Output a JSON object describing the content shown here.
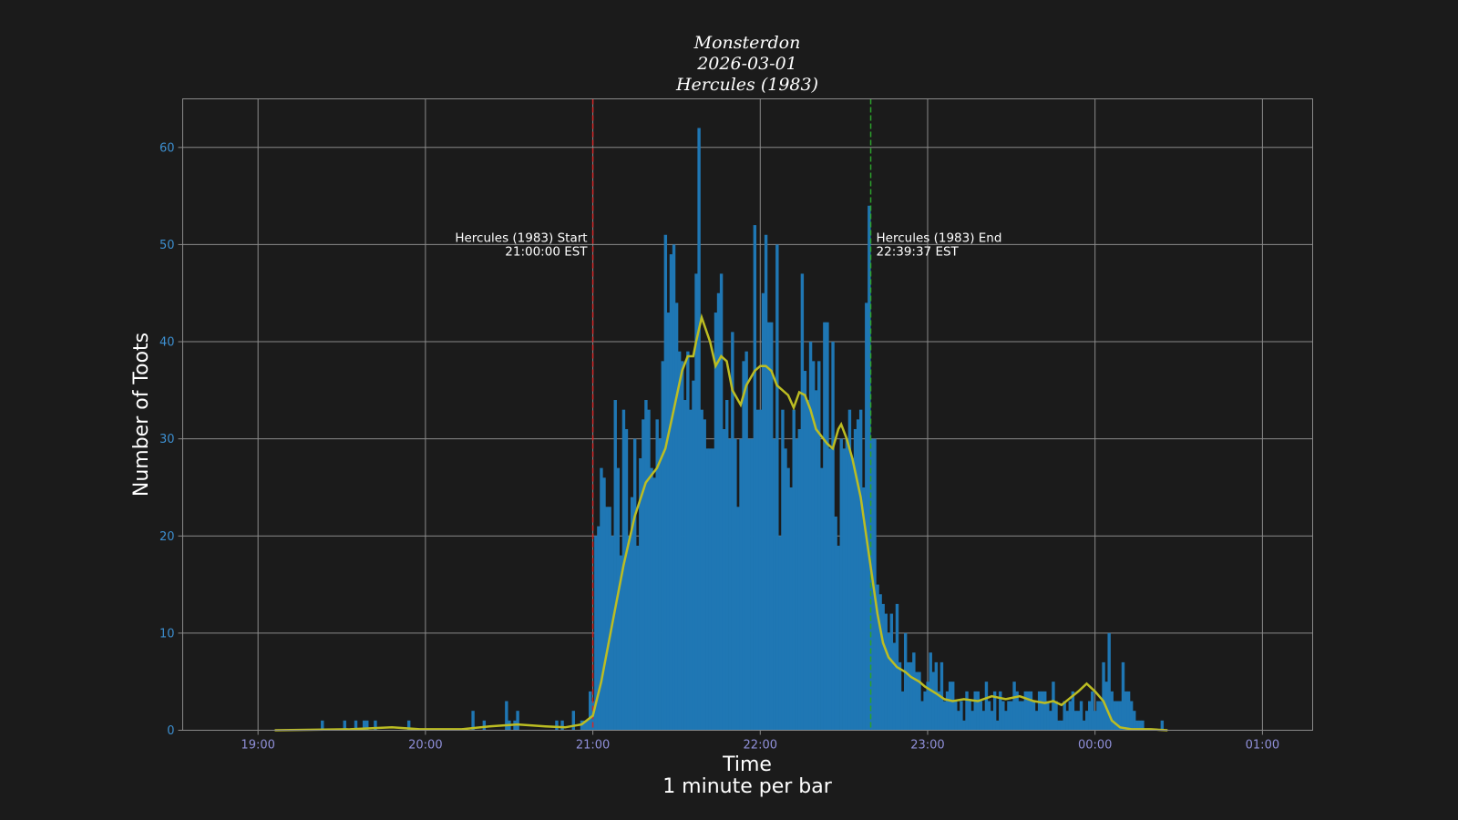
{
  "chart_data": {
    "type": "bar",
    "title_lines": [
      "Monsterdon",
      "2026-03-01",
      "Hercules (1983)"
    ],
    "xlabel": "Time",
    "xlabel_sub": "1 minute per bar",
    "ylabel": "Number of Toots",
    "x_start": "18:33",
    "x_ticks": [
      "19:00",
      "20:00",
      "21:00",
      "22:00",
      "23:00",
      "00:00",
      "01:00"
    ],
    "x_tick_minutes": [
      27,
      87,
      147,
      207,
      267,
      327,
      387
    ],
    "xlim_minutes": [
      0,
      405
    ],
    "y_ticks": [
      0,
      10,
      20,
      30,
      40,
      50,
      60
    ],
    "ylim": [
      0,
      65
    ],
    "grid": true,
    "bar_width_minutes": 1,
    "bar_color": "#1f77b4",
    "smooth_color": "#bcbd22",
    "bars": [
      [
        34,
        0
      ],
      [
        35,
        0
      ],
      [
        36,
        0
      ],
      [
        37,
        0
      ],
      [
        38,
        0
      ],
      [
        39,
        0
      ],
      [
        40,
        0
      ],
      [
        41,
        0
      ],
      [
        42,
        0
      ],
      [
        43,
        0
      ],
      [
        44,
        0
      ],
      [
        45,
        0
      ],
      [
        46,
        0
      ],
      [
        47,
        0
      ],
      [
        48,
        0
      ],
      [
        49,
        0
      ],
      [
        50,
        1
      ],
      [
        51,
        0
      ],
      [
        52,
        0
      ],
      [
        53,
        0
      ],
      [
        54,
        0
      ],
      [
        55,
        0
      ],
      [
        56,
        0
      ],
      [
        57,
        0
      ],
      [
        58,
        1
      ],
      [
        59,
        0
      ],
      [
        60,
        0
      ],
      [
        61,
        0
      ],
      [
        62,
        1
      ],
      [
        63,
        0
      ],
      [
        64,
        0
      ],
      [
        65,
        1
      ],
      [
        66,
        1
      ],
      [
        67,
        0
      ],
      [
        68,
        0
      ],
      [
        69,
        1
      ],
      [
        70,
        0
      ],
      [
        71,
        0
      ],
      [
        72,
        0
      ],
      [
        73,
        0
      ],
      [
        74,
        0
      ],
      [
        75,
        0
      ],
      [
        76,
        0
      ],
      [
        77,
        0
      ],
      [
        78,
        0
      ],
      [
        79,
        0
      ],
      [
        80,
        0
      ],
      [
        81,
        1
      ],
      [
        82,
        0
      ],
      [
        83,
        0
      ],
      [
        84,
        0
      ],
      [
        85,
        0
      ],
      [
        86,
        0
      ],
      [
        87,
        0
      ],
      [
        88,
        0
      ],
      [
        89,
        0
      ],
      [
        90,
        0
      ],
      [
        91,
        0
      ],
      [
        92,
        0
      ],
      [
        93,
        0
      ],
      [
        94,
        0
      ],
      [
        95,
        0
      ],
      [
        96,
        0
      ],
      [
        97,
        0
      ],
      [
        98,
        0
      ],
      [
        99,
        0
      ],
      [
        100,
        0
      ],
      [
        101,
        0
      ],
      [
        102,
        0
      ],
      [
        103,
        0
      ],
      [
        104,
        2
      ],
      [
        105,
        0
      ],
      [
        106,
        0
      ],
      [
        107,
        0
      ],
      [
        108,
        1
      ],
      [
        109,
        0
      ],
      [
        110,
        0
      ],
      [
        111,
        0
      ],
      [
        112,
        0
      ],
      [
        113,
        0
      ],
      [
        114,
        0
      ],
      [
        115,
        0
      ],
      [
        116,
        3
      ],
      [
        117,
        1
      ],
      [
        118,
        0
      ],
      [
        119,
        1
      ],
      [
        120,
        2
      ],
      [
        121,
        0
      ],
      [
        122,
        0
      ],
      [
        123,
        0
      ],
      [
        124,
        0
      ],
      [
        125,
        0
      ],
      [
        126,
        0
      ],
      [
        127,
        0
      ],
      [
        128,
        0
      ],
      [
        129,
        0
      ],
      [
        130,
        0
      ],
      [
        131,
        0
      ],
      [
        132,
        0
      ],
      [
        133,
        0
      ],
      [
        134,
        1
      ],
      [
        135,
        0
      ],
      [
        136,
        1
      ],
      [
        137,
        0
      ],
      [
        138,
        0
      ],
      [
        139,
        0
      ],
      [
        140,
        2
      ],
      [
        141,
        0
      ],
      [
        142,
        0
      ],
      [
        143,
        1
      ],
      [
        144,
        1
      ],
      [
        145,
        1
      ],
      [
        146,
        4
      ],
      [
        147,
        3
      ],
      [
        148,
        20
      ],
      [
        149,
        21
      ],
      [
        150,
        27
      ],
      [
        151,
        26
      ],
      [
        152,
        23
      ],
      [
        153,
        23
      ],
      [
        154,
        20
      ],
      [
        155,
        34
      ],
      [
        156,
        27
      ],
      [
        157,
        18
      ],
      [
        158,
        33
      ],
      [
        159,
        31
      ],
      [
        160,
        20
      ],
      [
        161,
        24
      ],
      [
        162,
        30
      ],
      [
        163,
        19
      ],
      [
        164,
        28
      ],
      [
        165,
        32
      ],
      [
        166,
        34
      ],
      [
        167,
        33
      ],
      [
        168,
        27
      ],
      [
        169,
        26
      ],
      [
        170,
        32
      ],
      [
        171,
        30
      ],
      [
        172,
        38
      ],
      [
        173,
        51
      ],
      [
        174,
        43
      ],
      [
        175,
        49
      ],
      [
        176,
        50
      ],
      [
        177,
        44
      ],
      [
        178,
        39
      ],
      [
        179,
        38
      ],
      [
        180,
        34
      ],
      [
        181,
        39
      ],
      [
        182,
        33
      ],
      [
        183,
        36
      ],
      [
        184,
        47
      ],
      [
        185,
        62
      ],
      [
        186,
        33
      ],
      [
        187,
        32
      ],
      [
        188,
        29
      ],
      [
        189,
        29
      ],
      [
        190,
        29
      ],
      [
        191,
        43
      ],
      [
        192,
        45
      ],
      [
        193,
        47
      ],
      [
        194,
        31
      ],
      [
        195,
        34
      ],
      [
        196,
        30
      ],
      [
        197,
        41
      ],
      [
        198,
        30
      ],
      [
        199,
        23
      ],
      [
        200,
        30
      ],
      [
        201,
        38
      ],
      [
        202,
        39
      ],
      [
        203,
        30
      ],
      [
        204,
        30
      ],
      [
        205,
        52
      ],
      [
        206,
        33
      ],
      [
        207,
        33
      ],
      [
        208,
        45
      ],
      [
        209,
        51
      ],
      [
        210,
        42
      ],
      [
        211,
        42
      ],
      [
        212,
        30
      ],
      [
        213,
        50
      ],
      [
        214,
        20
      ],
      [
        215,
        33
      ],
      [
        216,
        29
      ],
      [
        217,
        27
      ],
      [
        218,
        25
      ],
      [
        219,
        33
      ],
      [
        220,
        30
      ],
      [
        221,
        31
      ],
      [
        222,
        47
      ],
      [
        223,
        37
      ],
      [
        224,
        34
      ],
      [
        225,
        40
      ],
      [
        226,
        38
      ],
      [
        227,
        35
      ],
      [
        228,
        38
      ],
      [
        229,
        27
      ],
      [
        230,
        42
      ],
      [
        231,
        42
      ],
      [
        232,
        29
      ],
      [
        233,
        40
      ],
      [
        234,
        22
      ],
      [
        235,
        19
      ],
      [
        236,
        30
      ],
      [
        237,
        29
      ],
      [
        238,
        30
      ],
      [
        239,
        33
      ],
      [
        240,
        28
      ],
      [
        241,
        31
      ],
      [
        242,
        32
      ],
      [
        243,
        33
      ],
      [
        244,
        25
      ],
      [
        245,
        44
      ],
      [
        246,
        54
      ],
      [
        247,
        30
      ],
      [
        248,
        30
      ],
      [
        249,
        15
      ],
      [
        250,
        14
      ],
      [
        251,
        13
      ],
      [
        252,
        12
      ],
      [
        253,
        10
      ],
      [
        254,
        12
      ],
      [
        255,
        9
      ],
      [
        256,
        13
      ],
      [
        257,
        7
      ],
      [
        258,
        4
      ],
      [
        259,
        10
      ],
      [
        260,
        7
      ],
      [
        261,
        7
      ],
      [
        262,
        8
      ],
      [
        263,
        6
      ],
      [
        264,
        6
      ],
      [
        265,
        3
      ],
      [
        266,
        4
      ],
      [
        267,
        5
      ],
      [
        268,
        8
      ],
      [
        269,
        6
      ],
      [
        270,
        7
      ],
      [
        271,
        4
      ],
      [
        272,
        7
      ],
      [
        273,
        3
      ],
      [
        274,
        4
      ],
      [
        275,
        5
      ],
      [
        276,
        5
      ],
      [
        277,
        3
      ],
      [
        278,
        2
      ],
      [
        279,
        3
      ],
      [
        280,
        1
      ],
      [
        281,
        4
      ],
      [
        282,
        3
      ],
      [
        283,
        2
      ],
      [
        284,
        4
      ],
      [
        285,
        4
      ],
      [
        286,
        3
      ],
      [
        287,
        2
      ],
      [
        288,
        5
      ],
      [
        289,
        3
      ],
      [
        290,
        2
      ],
      [
        291,
        4
      ],
      [
        292,
        1
      ],
      [
        293,
        4
      ],
      [
        294,
        3
      ],
      [
        295,
        2
      ],
      [
        296,
        3
      ],
      [
        297,
        3
      ],
      [
        298,
        5
      ],
      [
        299,
        4
      ],
      [
        300,
        3
      ],
      [
        301,
        3
      ],
      [
        302,
        4
      ],
      [
        303,
        4
      ],
      [
        304,
        4
      ],
      [
        305,
        3
      ],
      [
        306,
        2
      ],
      [
        307,
        4
      ],
      [
        308,
        4
      ],
      [
        309,
        4
      ],
      [
        310,
        3
      ],
      [
        311,
        2
      ],
      [
        312,
        5
      ],
      [
        313,
        3
      ],
      [
        314,
        1
      ],
      [
        315,
        1
      ],
      [
        316,
        3
      ],
      [
        317,
        2
      ],
      [
        318,
        3
      ],
      [
        319,
        4
      ],
      [
        320,
        2
      ],
      [
        321,
        2
      ],
      [
        322,
        3
      ],
      [
        323,
        1
      ],
      [
        324,
        2
      ],
      [
        325,
        3
      ],
      [
        326,
        4
      ],
      [
        327,
        2
      ],
      [
        328,
        3
      ],
      [
        329,
        3
      ],
      [
        330,
        7
      ],
      [
        331,
        5
      ],
      [
        332,
        10
      ],
      [
        333,
        4
      ],
      [
        334,
        3
      ],
      [
        335,
        3
      ],
      [
        336,
        3
      ],
      [
        337,
        7
      ],
      [
        338,
        4
      ],
      [
        339,
        4
      ],
      [
        340,
        3
      ],
      [
        341,
        2
      ],
      [
        342,
        1
      ],
      [
        343,
        1
      ],
      [
        344,
        1
      ],
      [
        345,
        0
      ],
      [
        346,
        0
      ],
      [
        347,
        0
      ],
      [
        348,
        0
      ],
      [
        349,
        0
      ],
      [
        350,
        0
      ],
      [
        351,
        1
      ],
      [
        352,
        0
      ],
      [
        353,
        0
      ],
      [
        354,
        0
      ],
      [
        355,
        0
      ],
      [
        356,
        0
      ],
      [
        357,
        0
      ],
      [
        358,
        0
      ],
      [
        359,
        0
      ],
      [
        360,
        0
      ],
      [
        361,
        0
      ],
      [
        362,
        0
      ],
      [
        363,
        0
      ],
      [
        364,
        0
      ],
      [
        365,
        0
      ],
      [
        366,
        0
      ],
      [
        367,
        0
      ],
      [
        368,
        0
      ],
      [
        369,
        0
      ],
      [
        370,
        0
      ],
      [
        371,
        0
      ],
      [
        372,
        0
      ],
      [
        373,
        0
      ],
      [
        374,
        0
      ],
      [
        375,
        0
      ],
      [
        376,
        0
      ],
      [
        377,
        0
      ],
      [
        378,
        0
      ],
      [
        379,
        0
      ],
      [
        380,
        0
      ],
      [
        381,
        0
      ],
      [
        382,
        0
      ],
      [
        383,
        0
      ],
      [
        384,
        0
      ],
      [
        385,
        0
      ],
      [
        386,
        0
      ]
    ],
    "smooth_line": [
      [
        33,
        0
      ],
      [
        60,
        0.1
      ],
      [
        75,
        0.3
      ],
      [
        85,
        0.1
      ],
      [
        100,
        0.1
      ],
      [
        110,
        0.4
      ],
      [
        120,
        0.6
      ],
      [
        130,
        0.4
      ],
      [
        137,
        0.3
      ],
      [
        143,
        0.6
      ],
      [
        147,
        1.5
      ],
      [
        150,
        5
      ],
      [
        154,
        11
      ],
      [
        158,
        17
      ],
      [
        162,
        22
      ],
      [
        166,
        25.5
      ],
      [
        170,
        27
      ],
      [
        173,
        29
      ],
      [
        176,
        33
      ],
      [
        179,
        37
      ],
      [
        181,
        38.5
      ],
      [
        183,
        38.5
      ],
      [
        184,
        40
      ],
      [
        186,
        42.5
      ],
      [
        189,
        40
      ],
      [
        191,
        37.5
      ],
      [
        193,
        38.5
      ],
      [
        195,
        38
      ],
      [
        197,
        35
      ],
      [
        199,
        34
      ],
      [
        200,
        33.5
      ],
      [
        202,
        35.5
      ],
      [
        205,
        37
      ],
      [
        207,
        37.5
      ],
      [
        209,
        37.5
      ],
      [
        211,
        37
      ],
      [
        213,
        35.5
      ],
      [
        217,
        34.5
      ],
      [
        219,
        33.2
      ],
      [
        221,
        34.8
      ],
      [
        223,
        34.5
      ],
      [
        225,
        33
      ],
      [
        227,
        31
      ],
      [
        231,
        29.5
      ],
      [
        233,
        29
      ],
      [
        235,
        31
      ],
      [
        236,
        31.5
      ],
      [
        238,
        30
      ],
      [
        240,
        28
      ],
      [
        243,
        24
      ],
      [
        246,
        18
      ],
      [
        249,
        12
      ],
      [
        251,
        9
      ],
      [
        253,
        7.5
      ],
      [
        256,
        6.5
      ],
      [
        259,
        6
      ],
      [
        261,
        5.5
      ],
      [
        264,
        5
      ],
      [
        266,
        4.5
      ],
      [
        270,
        3.8
      ],
      [
        273,
        3.2
      ],
      [
        276,
        3
      ],
      [
        280,
        3.2
      ],
      [
        285,
        3
      ],
      [
        290,
        3.5
      ],
      [
        295,
        3.2
      ],
      [
        300,
        3.5
      ],
      [
        305,
        3
      ],
      [
        309,
        2.8
      ],
      [
        312,
        3
      ],
      [
        315,
        2.6
      ],
      [
        318,
        3.3
      ],
      [
        321,
        4
      ],
      [
        324,
        4.8
      ],
      [
        327,
        4
      ],
      [
        330,
        3
      ],
      [
        333,
        1
      ],
      [
        336,
        0.3
      ],
      [
        340,
        0.1
      ],
      [
        347,
        0.1
      ],
      [
        353,
        0
      ]
    ],
    "vlines": [
      {
        "minute": 147,
        "color": "#d62728",
        "label_line1": "Hercules (1983) Start",
        "label_line2": "21:00:00 EST",
        "align": "end"
      },
      {
        "minute": 246.6,
        "color": "#2ca02c",
        "label_line1": "Hercules (1983) End",
        "label_line2": "22:39:37 EST",
        "align": "start"
      }
    ],
    "annotation_y": 50
  }
}
